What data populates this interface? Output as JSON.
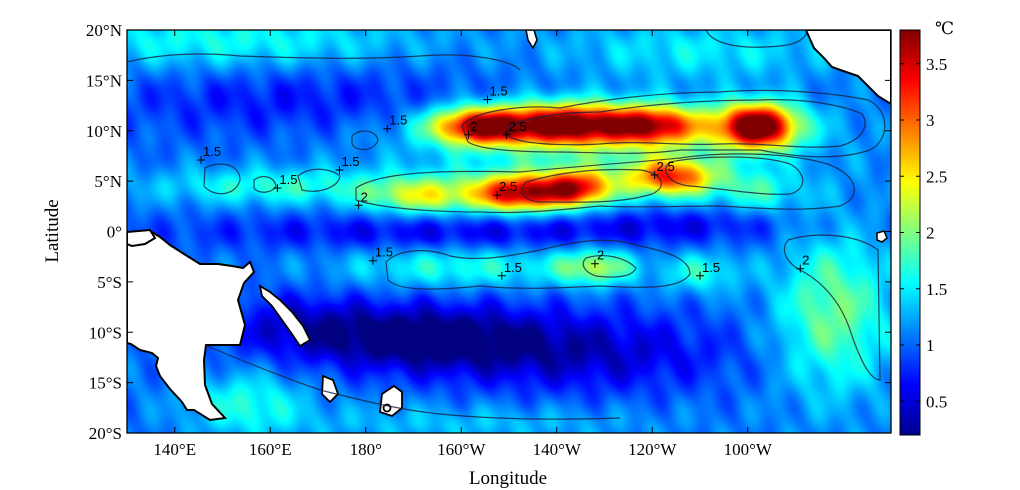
{
  "figure": {
    "xlabel": "Longitude",
    "ylabel": "Latitude",
    "colorbar_unit": "℃"
  },
  "map": {
    "lon_range": [
      130,
      290
    ],
    "lat_range": [
      -20,
      20
    ],
    "x_ticks": [
      {
        "lon": 140,
        "label": "140°E"
      },
      {
        "lon": 160,
        "label": "160°E"
      },
      {
        "lon": 180,
        "label": "180°"
      },
      {
        "lon": 200,
        "label": "160°W"
      },
      {
        "lon": 220,
        "label": "140°W"
      },
      {
        "lon": 240,
        "label": "120°W"
      },
      {
        "lon": 260,
        "label": "100°W"
      }
    ],
    "y_ticks": [
      {
        "lat": 20,
        "label": "20°N"
      },
      {
        "lat": 15,
        "label": "15°N"
      },
      {
        "lat": 10,
        "label": "10°N"
      },
      {
        "lat": 5,
        "label": "5°N"
      },
      {
        "lat": 0,
        "label": "0°"
      },
      {
        "lat": -5,
        "label": "5°S"
      },
      {
        "lat": -10,
        "label": "10°S"
      },
      {
        "lat": -15,
        "label": "15°S"
      },
      {
        "lat": -20,
        "label": "20°S"
      }
    ],
    "contour_labels": [
      {
        "text": "1.5",
        "lon": 184.5,
        "lat": 10.6
      },
      {
        "text": "1.5",
        "lon": 145.5,
        "lat": 7.5
      },
      {
        "text": "1.5",
        "lon": 174.5,
        "lat": 6.5
      },
      {
        "text": "1.5",
        "lon": 161.5,
        "lat": 4.7
      },
      {
        "text": "1.5",
        "lon": 205.5,
        "lat": 13.5
      },
      {
        "text": "2",
        "lon": 201.5,
        "lat": 10.0
      },
      {
        "text": "2.5",
        "lon": 209.5,
        "lat": 10.0
      },
      {
        "text": "2",
        "lon": 178.5,
        "lat": 3.0
      },
      {
        "text": "2.5",
        "lon": 207.5,
        "lat": 4.0
      },
      {
        "text": "2.5",
        "lon": 240.5,
        "lat": 6.0
      },
      {
        "text": "1.5",
        "lon": 181.5,
        "lat": -2.5
      },
      {
        "text": "1.5",
        "lon": 208.5,
        "lat": -4.0
      },
      {
        "text": "2",
        "lon": 228.0,
        "lat": -2.8
      },
      {
        "text": "1.5",
        "lon": 250.0,
        "lat": -4.0
      },
      {
        "text": "2",
        "lon": 271.0,
        "lat": -3.3
      }
    ]
  },
  "chart_data": {
    "type": "heatmap",
    "title": "",
    "xlabel": "Longitude",
    "ylabel": "Latitude",
    "x_range": [
      130,
      290
    ],
    "y_range": [
      -20,
      20
    ],
    "colorbar": {
      "unit": "℃",
      "range": [
        0.2,
        3.8
      ],
      "ticks": [
        0.5,
        1,
        1.5,
        2,
        2.5,
        3,
        3.5
      ],
      "tick_labels": [
        "0.5",
        "1",
        "1.5",
        "2",
        "2.5",
        "3",
        "3.5"
      ],
      "colormap": "jet"
    },
    "contour_levels": [
      1.5,
      2,
      2.5
    ],
    "features": [
      {
        "lon": 204,
        "lat": 10.5,
        "value": 3.5
      },
      {
        "lon": 222,
        "lat": 10.5,
        "value": 3.5
      },
      {
        "lon": 245,
        "lat": 10.5,
        "value": 3.3
      },
      {
        "lon": 263,
        "lat": 10.5,
        "value": 3.8
      },
      {
        "lon": 213,
        "lat": 3.5,
        "value": 3.4
      },
      {
        "lon": 225,
        "lat": 4.0,
        "value": 3.1
      },
      {
        "lon": 245,
        "lat": 5.5,
        "value": 2.9
      },
      {
        "lon": 192,
        "lat": 3.5,
        "value": 2.3
      },
      {
        "lon": 228,
        "lat": -3.5,
        "value": 2.1
      },
      {
        "lon": 270,
        "lat": -5.0,
        "value": 2.0
      },
      {
        "lon": 185,
        "lat": -10.5,
        "value": 0.3
      },
      {
        "lon": 200,
        "lat": 0.0,
        "value": 1.0
      },
      {
        "lon": 240,
        "lat": 1.0,
        "value": 1.0
      },
      {
        "lon": 150,
        "lat": 12.0,
        "value": 0.7
      },
      {
        "lon": 140,
        "lat": 19.0,
        "value": 1.7
      },
      {
        "lon": 155,
        "lat": -17.5,
        "value": 1.7
      }
    ]
  }
}
